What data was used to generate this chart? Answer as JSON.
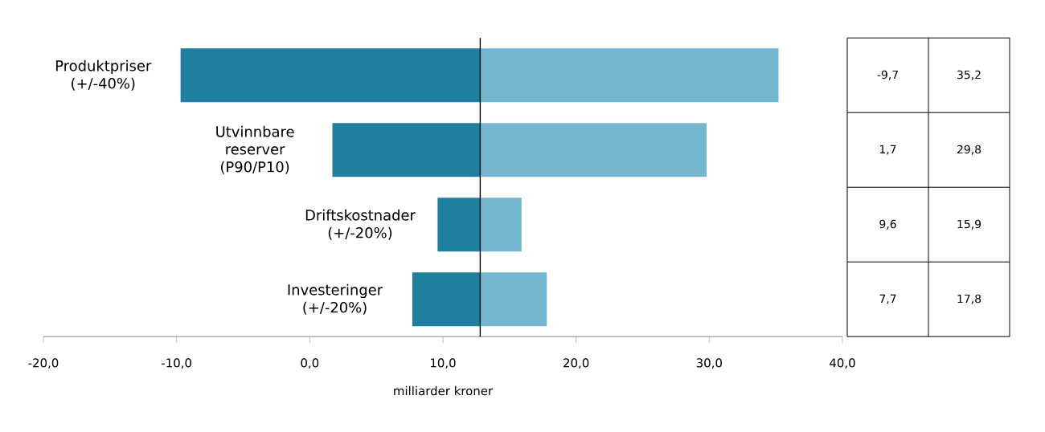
{
  "chart_data": {
    "type": "bar",
    "orientation": "horizontal",
    "categories": [
      "Produktpriser (+/-40%)",
      "Utvinnbare reserver (P90/P10)",
      "Driftskostnader (+/-20%)",
      "Investeringer (+/-20%)"
    ],
    "series": [
      {
        "color": "#1f7f9e",
        "base": [
          12.8,
          12.8,
          12.8,
          12.8
        ],
        "values": [
          -22.5,
          -11.1,
          -3.2,
          -5.1
        ],
        "value_labels": [
          "-9,7",
          "1,7",
          "9,6",
          "7,7"
        ]
      },
      {
        "color": "#74b5cf",
        "base": [
          12.8,
          12.8,
          12.8,
          12.8
        ],
        "values": [
          22.4,
          17.0,
          3.1,
          5.0
        ],
        "value_labels": [
          "35,2",
          "29,8",
          "15,9",
          "17,8"
        ]
      }
    ],
    "xlabel": "milliarder kroner",
    "xlim": [
      -20,
      40
    ],
    "xticks": [
      {
        "value": -20,
        "label": "-20,0"
      },
      {
        "value": -10,
        "label": "-10,0"
      },
      {
        "value": 0,
        "label": "0,0"
      },
      {
        "value": 10,
        "label": "10,0"
      },
      {
        "value": 20,
        "label": "20,0"
      },
      {
        "value": 30,
        "label": "30,0"
      },
      {
        "value": 40,
        "label": "40,0"
      }
    ],
    "ref_lines": [
      {
        "axis": "x",
        "value": 12.8,
        "color": "#000000"
      }
    ],
    "grid": false
  }
}
